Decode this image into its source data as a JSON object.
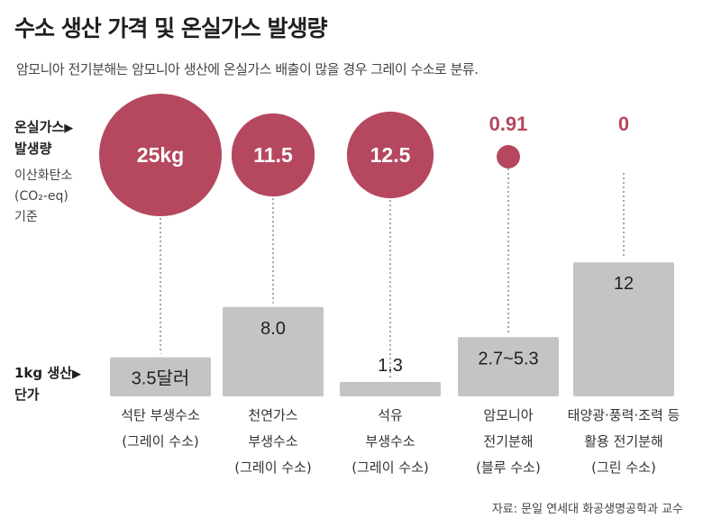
{
  "title": "수소 생산 가격 및 온실가스 발생량",
  "subtitle": "암모니아 전기분해는 암모니아 생산에 온실가스 배출이 많을 경우 그레이 수소로 분류.",
  "emission_label": {
    "line1": "온실가스",
    "line2": "발생량",
    "arrow": "▶",
    "sub1": "이산화탄소",
    "sub2": "(CO₂-eq)",
    "sub3": "기준"
  },
  "price_label": {
    "line1": "1kg 생산",
    "line2": "단가",
    "arrow": "▶"
  },
  "source": "자료: 문일 연세대 화공생명공학과 교수",
  "colors": {
    "bubble": "#b5485e",
    "bar": "#c4c4c4",
    "dotline": "#888888"
  },
  "chart_data": {
    "type": "bubble-bar",
    "title": "수소 생산 가격 및 온실가스 발생량",
    "categories": [
      {
        "name_lines": [
          "석탄 부생수소",
          "(그레이 수소)"
        ],
        "emission": 25,
        "emission_label": "25kg",
        "price": 3.5,
        "price_label": "3.5달러"
      },
      {
        "name_lines": [
          "천연가스",
          "부생수소",
          "(그레이 수소)"
        ],
        "emission": 11.5,
        "emission_label": "11.5",
        "price": 8.0,
        "price_label": "8.0"
      },
      {
        "name_lines": [
          "석유",
          "부생수소",
          "(그레이 수소)"
        ],
        "emission": 12.5,
        "emission_label": "12.5",
        "price": 1.3,
        "price_label": "1.3"
      },
      {
        "name_lines": [
          "암모니아",
          "전기분해",
          "(블루 수소)"
        ],
        "emission": 0.91,
        "emission_label": "0.91",
        "price": 5.3,
        "price_min": 2.7,
        "price_label": "2.7~5.3"
      },
      {
        "name_lines": [
          "태양광·풍력·조력 등",
          "활용 전기분해",
          "(그린 수소)"
        ],
        "emission": 0,
        "emission_label": "0",
        "price": 12,
        "price_label": "12"
      }
    ],
    "emission_unit": "kg CO₂-eq",
    "price_unit": "달러"
  }
}
